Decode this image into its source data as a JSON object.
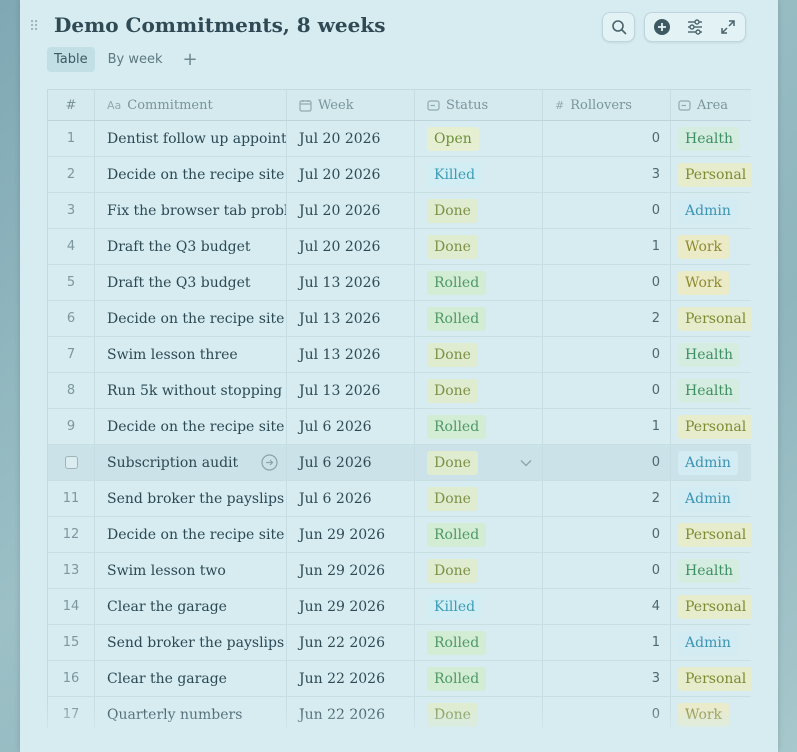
{
  "title": "Demo Commitments, 8 weeks",
  "toolbar": {
    "search_icon": "search-icon",
    "add_icon": "plus-circle-icon",
    "filter_icon": "sliders-icon",
    "expand_icon": "expand-icon"
  },
  "tabs": [
    {
      "label": "Table",
      "active": true
    },
    {
      "label": "By week",
      "active": false
    }
  ],
  "add_tab_label": "+",
  "columns": {
    "num": "#",
    "commitment": "Commitment",
    "commitment_icon_text": "Aa",
    "week": "Week",
    "status": "Status",
    "rollovers": "Rollovers",
    "rollovers_icon_text": "#",
    "area": "Area"
  },
  "colors": {
    "panel_bg": "#d6ecf1",
    "title": "#2f4a55",
    "status_open": "#e6efd2",
    "status_killed": "#d2eef4",
    "status_done": "#dfeccf",
    "status_rolled": "#d3ecd4"
  },
  "rows": [
    {
      "n": "1",
      "commitment": "Dentist follow up appointment",
      "week": "Jul 20 2026",
      "status": "Open",
      "rollovers": "0",
      "area": "Health"
    },
    {
      "n": "2",
      "commitment": "Decide on the recipe site",
      "week": "Jul 20 2026",
      "status": "Killed",
      "rollovers": "3",
      "area": "Personal"
    },
    {
      "n": "3",
      "commitment": "Fix the browser tab problem",
      "week": "Jul 20 2026",
      "status": "Done",
      "rollovers": "0",
      "area": "Admin"
    },
    {
      "n": "4",
      "commitment": "Draft the Q3 budget",
      "week": "Jul 20 2026",
      "status": "Done",
      "rollovers": "1",
      "area": "Work"
    },
    {
      "n": "5",
      "commitment": "Draft the Q3 budget",
      "week": "Jul 13 2026",
      "status": "Rolled",
      "rollovers": "0",
      "area": "Work"
    },
    {
      "n": "6",
      "commitment": "Decide on the recipe site",
      "week": "Jul 13 2026",
      "status": "Rolled",
      "rollovers": "2",
      "area": "Personal"
    },
    {
      "n": "7",
      "commitment": "Swim lesson three",
      "week": "Jul 13 2026",
      "status": "Done",
      "rollovers": "0",
      "area": "Health"
    },
    {
      "n": "8",
      "commitment": "Run 5k without stopping",
      "week": "Jul 13 2026",
      "status": "Done",
      "rollovers": "0",
      "area": "Health"
    },
    {
      "n": "9",
      "commitment": "Decide on the recipe site",
      "week": "Jul 6 2026",
      "status": "Rolled",
      "rollovers": "1",
      "area": "Personal"
    },
    {
      "n": "",
      "commitment": "Subscription audit",
      "week": "Jul 6 2026",
      "status": "Done",
      "rollovers": "0",
      "area": "Admin",
      "hovered": true
    },
    {
      "n": "11",
      "commitment": "Send broker the payslips",
      "week": "Jul 6 2026",
      "status": "Done",
      "rollovers": "2",
      "area": "Admin"
    },
    {
      "n": "12",
      "commitment": "Decide on the recipe site",
      "week": "Jun 29 2026",
      "status": "Rolled",
      "rollovers": "0",
      "area": "Personal"
    },
    {
      "n": "13",
      "commitment": "Swim lesson two",
      "week": "Jun 29 2026",
      "status": "Done",
      "rollovers": "0",
      "area": "Health"
    },
    {
      "n": "14",
      "commitment": "Clear the garage",
      "week": "Jun 29 2026",
      "status": "Killed",
      "rollovers": "4",
      "area": "Personal"
    },
    {
      "n": "15",
      "commitment": "Send broker the payslips",
      "week": "Jun 22 2026",
      "status": "Rolled",
      "rollovers": "1",
      "area": "Admin"
    },
    {
      "n": "16",
      "commitment": "Clear the garage",
      "week": "Jun 22 2026",
      "status": "Rolled",
      "rollovers": "3",
      "area": "Personal"
    },
    {
      "n": "17",
      "commitment": "Quarterly numbers",
      "week": "Jun 22 2026",
      "status": "Done",
      "rollovers": "0",
      "area": "Work"
    }
  ]
}
